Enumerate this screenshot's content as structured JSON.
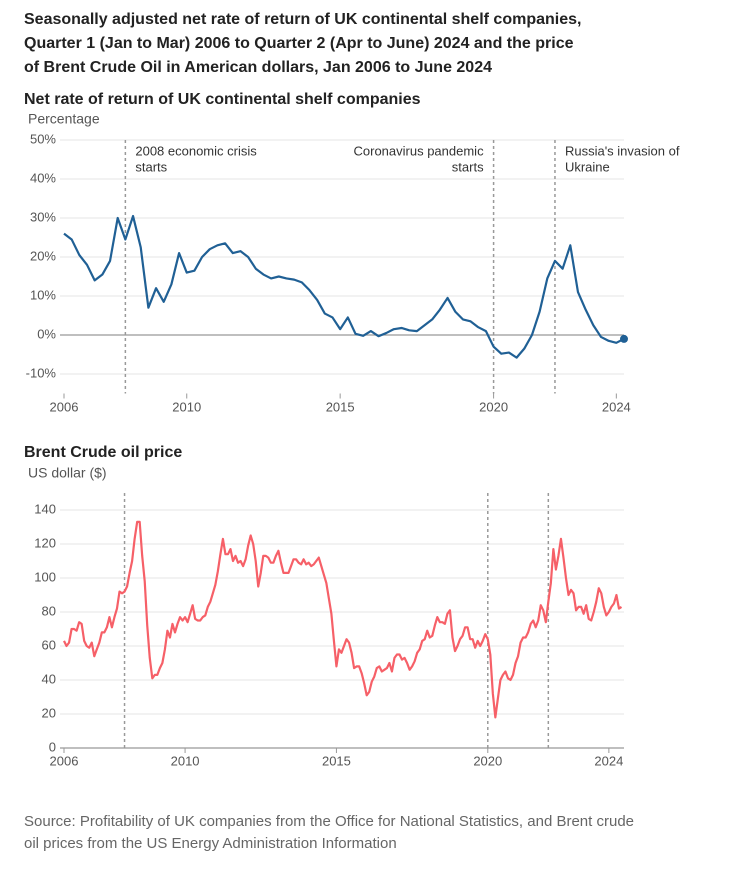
{
  "title": [
    "Seasonally adjusted net rate of return of UK continental shelf companies,",
    "Quarter 1 (Jan to Mar) 2006 to Quarter 2 (Apr to June) 2024 and the price",
    "of Brent Crude Oil in American dollars, Jan 2006 to June 2024"
  ],
  "source": [
    "Source: Profitability of UK companies from the Office for National Statistics, and Brent crude",
    "oil prices from the US Energy Administration Information"
  ],
  "chart_data": [
    {
      "type": "line",
      "title": "Net rate of return of UK continental shelf companies",
      "y_label": "Percentage",
      "color": "#206095",
      "grid": true,
      "marker_last": true,
      "xlim": [
        2006,
        2024.25
      ],
      "xticks": [
        2006,
        2010,
        2015,
        2020,
        2024
      ],
      "ylim": [
        -15,
        50
      ],
      "yticks": [
        {
          "value": -10,
          "label": "-10%"
        },
        {
          "value": 0,
          "label": "0%"
        },
        {
          "value": 10,
          "label": "10%"
        },
        {
          "value": 20,
          "label": "20%"
        },
        {
          "value": 30,
          "label": "30%"
        },
        {
          "value": 40,
          "label": "40%"
        },
        {
          "value": 50,
          "label": "50%"
        }
      ],
      "annotations": [
        {
          "x": 2008,
          "text": [
            "2008 economic crisis",
            "starts"
          ]
        },
        {
          "x": 2020,
          "text": [
            "Coronavirus pandemic",
            "starts"
          ]
        },
        {
          "x": 2022,
          "text": [
            "Russia's invasion of",
            "Ukraine"
          ]
        }
      ],
      "x": [
        2006,
        2006.25,
        2006.5,
        2006.75,
        2007,
        2007.25,
        2007.5,
        2007.75,
        2008,
        2008.25,
        2008.5,
        2008.75,
        2009,
        2009.25,
        2009.5,
        2009.75,
        2010,
        2010.25,
        2010.5,
        2010.75,
        2011,
        2011.25,
        2011.5,
        2011.75,
        2012,
        2012.25,
        2012.5,
        2012.75,
        2013,
        2013.25,
        2013.5,
        2013.75,
        2014,
        2014.25,
        2014.5,
        2014.75,
        2015,
        2015.25,
        2015.5,
        2015.75,
        2016,
        2016.25,
        2016.5,
        2016.75,
        2017,
        2017.25,
        2017.5,
        2017.75,
        2018,
        2018.25,
        2018.5,
        2018.75,
        2019,
        2019.25,
        2019.5,
        2019.75,
        2020,
        2020.25,
        2020.5,
        2020.75,
        2021,
        2021.25,
        2021.5,
        2021.75,
        2022,
        2022.25,
        2022.5,
        2022.75,
        2023,
        2023.25,
        2023.5,
        2023.75,
        2024,
        2024.25
      ],
      "values": [
        26,
        24.5,
        20.5,
        18,
        14,
        15.5,
        19,
        30,
        24.5,
        30.5,
        22.5,
        7,
        12,
        8.5,
        13,
        21,
        16,
        16.5,
        20,
        22,
        23,
        23.5,
        21,
        21.5,
        20,
        17,
        15.5,
        14.5,
        15,
        14.5,
        14.2,
        13.5,
        11.5,
        9,
        5.5,
        4.5,
        1.5,
        4.5,
        0.3,
        -0.2,
        1,
        -0.3,
        0.5,
        1.5,
        1.8,
        1.2,
        1,
        2.5,
        4,
        6.5,
        9.5,
        6,
        4,
        3.5,
        2,
        1,
        -3,
        -4.8,
        -4.5,
        -5.8,
        -3.5,
        0,
        6,
        14.5,
        19,
        17,
        23,
        11,
        6.5,
        2.5,
        -0.5,
        -1.5,
        -2,
        -1
      ]
    },
    {
      "type": "line",
      "title": "Brent Crude oil price",
      "y_label": "US dollar ($)",
      "color": "#f66068",
      "grid": true,
      "marker_last": false,
      "xlim": [
        2006,
        2024.5
      ],
      "xticks": [
        2006,
        2010,
        2015,
        2020,
        2024
      ],
      "ylim": [
        0,
        150
      ],
      "yticks": [
        0,
        20,
        40,
        60,
        80,
        100,
        120,
        140
      ],
      "vlines": [
        2008,
        2020,
        2022
      ],
      "x": [
        2006,
        2006.083,
        2006.167,
        2006.25,
        2006.333,
        2006.417,
        2006.5,
        2006.583,
        2006.667,
        2006.75,
        2006.833,
        2006.917,
        2007,
        2007.083,
        2007.167,
        2007.25,
        2007.333,
        2007.417,
        2007.5,
        2007.583,
        2007.667,
        2007.75,
        2007.833,
        2007.917,
        2008,
        2008.083,
        2008.167,
        2008.25,
        2008.333,
        2008.417,
        2008.5,
        2008.583,
        2008.667,
        2008.75,
        2008.833,
        2008.917,
        2009,
        2009.083,
        2009.167,
        2009.25,
        2009.333,
        2009.417,
        2009.5,
        2009.583,
        2009.667,
        2009.75,
        2009.833,
        2009.917,
        2010,
        2010.083,
        2010.167,
        2010.25,
        2010.333,
        2010.417,
        2010.5,
        2010.583,
        2010.667,
        2010.75,
        2010.833,
        2010.917,
        2011,
        2011.083,
        2011.167,
        2011.25,
        2011.333,
        2011.417,
        2011.5,
        2011.583,
        2011.667,
        2011.75,
        2011.833,
        2011.917,
        2012,
        2012.083,
        2012.167,
        2012.25,
        2012.333,
        2012.417,
        2012.5,
        2012.583,
        2012.667,
        2012.75,
        2012.833,
        2012.917,
        2013,
        2013.083,
        2013.167,
        2013.25,
        2013.333,
        2013.417,
        2013.5,
        2013.583,
        2013.667,
        2013.75,
        2013.833,
        2013.917,
        2014,
        2014.083,
        2014.167,
        2014.25,
        2014.333,
        2014.417,
        2014.5,
        2014.583,
        2014.667,
        2014.75,
        2014.833,
        2014.917,
        2015,
        2015.083,
        2015.167,
        2015.25,
        2015.333,
        2015.417,
        2015.5,
        2015.583,
        2015.667,
        2015.75,
        2015.833,
        2015.917,
        2016,
        2016.083,
        2016.167,
        2016.25,
        2016.333,
        2016.417,
        2016.5,
        2016.583,
        2016.667,
        2016.75,
        2016.833,
        2016.917,
        2017,
        2017.083,
        2017.167,
        2017.25,
        2017.333,
        2017.417,
        2017.5,
        2017.583,
        2017.667,
        2017.75,
        2017.833,
        2017.917,
        2018,
        2018.083,
        2018.167,
        2018.25,
        2018.333,
        2018.417,
        2018.5,
        2018.583,
        2018.667,
        2018.75,
        2018.833,
        2018.917,
        2019,
        2019.083,
        2019.167,
        2019.25,
        2019.333,
        2019.417,
        2019.5,
        2019.583,
        2019.667,
        2019.75,
        2019.833,
        2019.917,
        2020,
        2020.083,
        2020.167,
        2020.25,
        2020.333,
        2020.417,
        2020.5,
        2020.583,
        2020.667,
        2020.75,
        2020.833,
        2020.917,
        2021,
        2021.083,
        2021.167,
        2021.25,
        2021.333,
        2021.417,
        2021.5,
        2021.583,
        2021.667,
        2021.75,
        2021.833,
        2021.917,
        2022,
        2022.083,
        2022.167,
        2022.25,
        2022.333,
        2022.417,
        2022.5,
        2022.583,
        2022.667,
        2022.75,
        2022.833,
        2022.917,
        2023,
        2023.083,
        2023.167,
        2023.25,
        2023.333,
        2023.417,
        2023.5,
        2023.583,
        2023.667,
        2023.75,
        2023.833,
        2023.917,
        2024,
        2024.083,
        2024.167,
        2024.25,
        2024.333,
        2024.417
      ],
      "values": [
        63,
        60,
        62,
        70,
        70,
        69,
        74,
        73,
        63,
        60,
        59,
        62,
        54,
        58,
        62,
        68,
        68,
        71,
        77,
        71,
        77,
        82,
        92,
        91,
        92,
        95,
        103,
        110,
        123,
        133,
        133,
        113,
        98,
        72,
        53,
        41,
        43,
        43,
        47,
        50,
        58,
        69,
        65,
        73,
        68,
        73,
        77,
        75,
        77,
        74,
        79,
        84,
        76,
        75,
        75,
        77,
        78,
        83,
        86,
        91,
        96,
        104,
        114,
        123,
        114,
        114,
        117,
        110,
        113,
        109,
        110,
        107,
        111,
        119,
        125,
        120,
        110,
        95,
        103,
        113,
        113,
        112,
        109,
        109,
        113,
        116,
        109,
        103,
        103,
        103,
        107,
        111,
        111,
        109,
        108,
        111,
        108,
        109,
        107,
        108,
        110,
        112,
        107,
        102,
        97,
        88,
        79,
        63,
        48,
        58,
        56,
        60,
        64,
        62,
        56,
        47,
        48,
        48,
        44,
        38,
        31,
        33,
        39,
        42,
        47,
        48,
        45,
        46,
        47,
        50,
        45,
        53,
        55,
        55,
        52,
        53,
        50,
        46,
        48,
        51,
        56,
        58,
        63,
        64,
        69,
        65,
        66,
        72,
        77,
        74,
        74,
        73,
        79,
        81,
        65,
        57,
        60,
        64,
        66,
        71,
        71,
        64,
        64,
        59,
        63,
        60,
        63,
        67,
        64,
        55,
        32,
        18,
        29,
        40,
        43,
        45,
        41,
        40,
        43,
        50,
        54,
        62,
        65,
        65,
        68,
        73,
        75,
        71,
        75,
        84,
        81,
        74,
        86,
        97,
        117,
        105,
        113,
        123,
        112,
        100,
        90,
        93,
        91,
        81,
        83,
        83,
        79,
        84,
        76,
        75,
        80,
        86,
        94,
        91,
        83,
        78,
        80,
        83,
        85,
        90,
        82,
        83
      ]
    }
  ]
}
